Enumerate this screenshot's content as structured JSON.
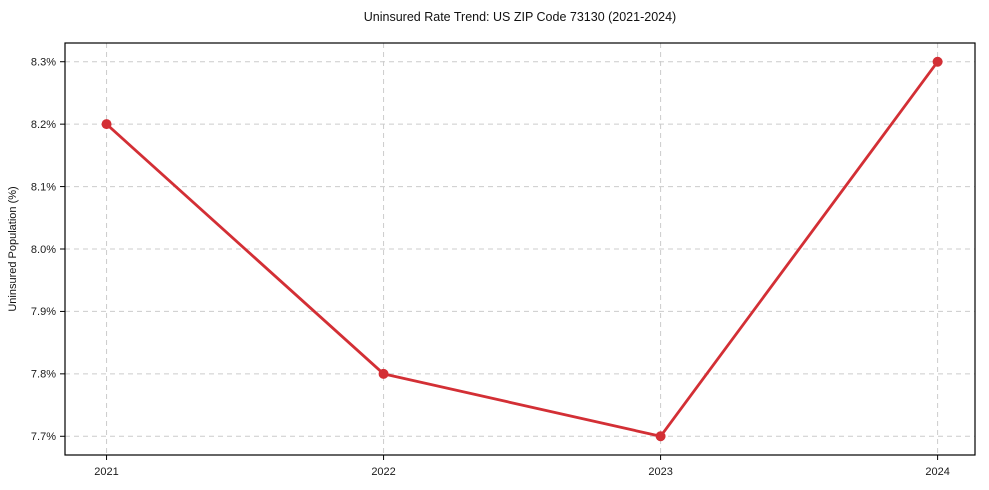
{
  "figure": {
    "background": "#ffffff",
    "plot_background": "#ffffff",
    "border_color": "#000000"
  },
  "chart_data": {
    "type": "line",
    "title": "Uninsured Rate Trend: US ZIP Code 73130 (2021-2024)",
    "xlabel": "",
    "ylabel": "Uninsured Population (%)",
    "x": [
      2021,
      2022,
      2023,
      2024
    ],
    "xtick_labels": [
      "2021",
      "2022",
      "2023",
      "2024"
    ],
    "series": [
      {
        "values": [
          8.2,
          7.8,
          7.7,
          8.3
        ],
        "color": "#d32f35",
        "marker": "circle",
        "line_width": 2.8,
        "marker_radius": 5
      }
    ],
    "yticks": [
      7.7,
      7.8,
      7.9,
      8.0,
      8.1,
      8.2,
      8.3
    ],
    "ytick_labels": [
      "7.7%",
      "7.8%",
      "7.9%",
      "8.0%",
      "8.1%",
      "8.2%",
      "8.3%"
    ],
    "ylim": [
      7.67,
      8.33
    ],
    "xlim": [
      2020.85,
      2024.135
    ],
    "grid": true,
    "grid_color": "#cccccc",
    "grid_style": "dashed",
    "legend": "none"
  }
}
